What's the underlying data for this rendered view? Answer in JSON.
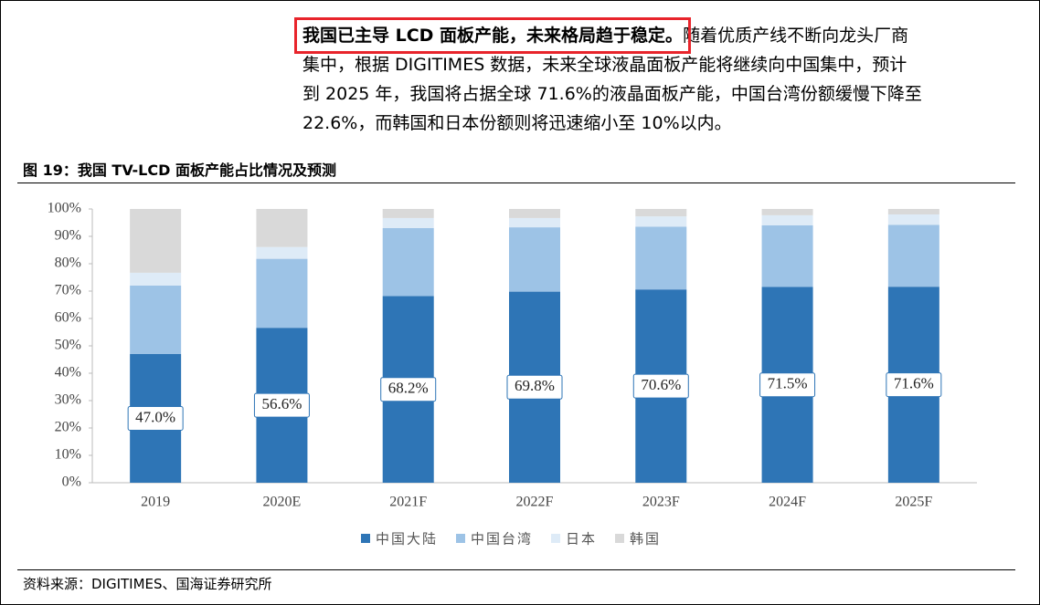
{
  "paragraph": {
    "highlight": "我国已主导 LCD 面板产能，未来格局趋于稳定。",
    "lines": [
      "随着优质产线不断向龙头厂商",
      "集中，根据 DIGITIMES 数据，未来全球液晶面板产能将继续向中国集中，预计",
      "到 2025 年，我国将占据全球 71.6%的液晶面板产能，中国台湾份额缓慢下降至",
      "22.6%，而韩国和日本份额则将迅速缩小至 10%以内。"
    ]
  },
  "caption": "图 19：我国 TV-LCD 面板产能占比情况及预测",
  "source": "资料来源：DIGITIMES、国海证券研究所",
  "chart_data": {
    "type": "stacked_bar",
    "categories": [
      "2019",
      "2020E",
      "2021F",
      "2022F",
      "2023F",
      "2024F",
      "2025F"
    ],
    "series": [
      {
        "name": "中国大陆",
        "color": "#2e75b6",
        "values": [
          47.0,
          56.6,
          68.2,
          69.8,
          70.6,
          71.5,
          71.6
        ],
        "value_labels": [
          "47.0%",
          "56.6%",
          "68.2%",
          "69.8%",
          "70.6%",
          "71.5%",
          "71.6%"
        ]
      },
      {
        "name": "中国台湾",
        "color": "#9dc3e6",
        "values": [
          25.0,
          25.2,
          24.8,
          23.5,
          22.9,
          22.5,
          22.6
        ]
      },
      {
        "name": "日本",
        "color": "#deebf7",
        "values": [
          4.7,
          4.3,
          3.7,
          3.4,
          3.8,
          3.7,
          3.8
        ]
      },
      {
        "name": "韩国",
        "color": "#d9d9d9",
        "values": [
          23.3,
          13.9,
          3.3,
          3.3,
          2.7,
          2.3,
          2.0
        ]
      }
    ],
    "ylim": [
      0,
      100
    ],
    "yticks": [
      {
        "value": 0,
        "label": "0%"
      },
      {
        "value": 10,
        "label": "10%"
      },
      {
        "value": 20,
        "label": "20%"
      },
      {
        "value": 30,
        "label": "30%"
      },
      {
        "value": 40,
        "label": "40%"
      },
      {
        "value": 50,
        "label": "50%"
      },
      {
        "value": 60,
        "label": "60%"
      },
      {
        "value": 70,
        "label": "70%"
      },
      {
        "value": 80,
        "label": "80%"
      },
      {
        "value": 90,
        "label": "90%"
      },
      {
        "value": 100,
        "label": "100%"
      }
    ],
    "legend": "bottom"
  }
}
